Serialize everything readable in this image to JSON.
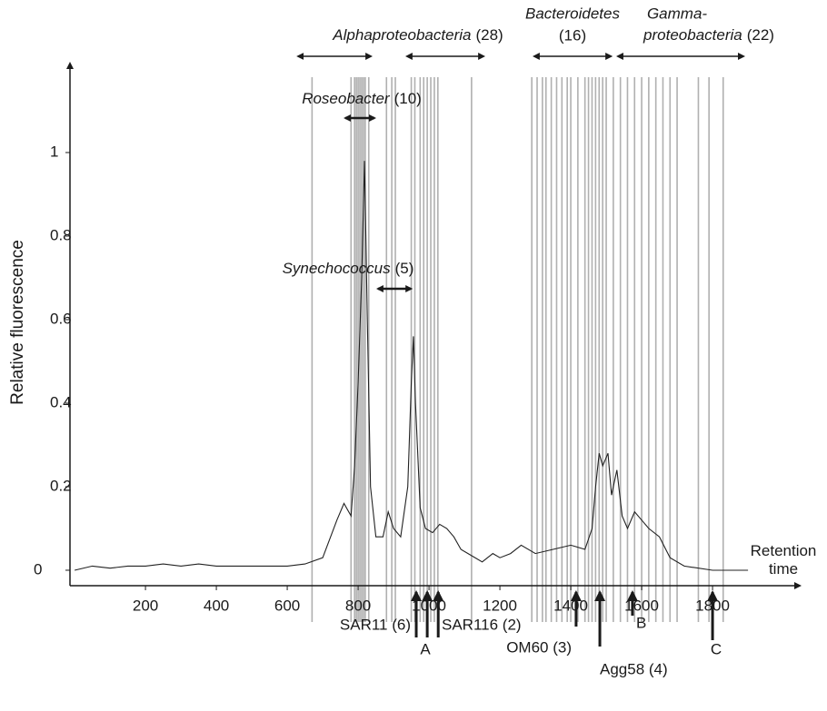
{
  "chart_data": {
    "type": "line",
    "y_label": "Relative fluorescence",
    "x_label": "Retention time",
    "xlim": [
      -13,
      2046
    ],
    "ylim": [
      -0.037,
      1.213
    ],
    "xticks": [
      200,
      400,
      600,
      800,
      1000,
      1200,
      1400,
      1600,
      1800
    ],
    "yticks": [
      0,
      0.2,
      0.4,
      0.6,
      0.8,
      1
    ],
    "x": [
      0,
      50,
      100,
      150,
      200,
      250,
      300,
      350,
      400,
      450,
      500,
      550,
      600,
      650,
      700,
      740,
      760,
      780,
      790,
      800,
      810,
      818,
      826,
      835,
      850,
      870,
      885,
      900,
      920,
      940,
      950,
      956,
      962,
      975,
      990,
      1010,
      1030,
      1050,
      1070,
      1090,
      1110,
      1150,
      1180,
      1200,
      1230,
      1260,
      1300,
      1350,
      1400,
      1440,
      1460,
      1470,
      1480,
      1490,
      1505,
      1515,
      1530,
      1545,
      1560,
      1580,
      1600,
      1620,
      1650,
      1680,
      1720,
      1800,
      1900
    ],
    "series": [
      {
        "name": "Relative fluorescence",
        "color": "#222222",
        "values": [
          0.0,
          0.01,
          0.005,
          0.01,
          0.01,
          0.015,
          0.01,
          0.015,
          0.01,
          0.01,
          0.01,
          0.01,
          0.01,
          0.015,
          0.03,
          0.12,
          0.16,
          0.13,
          0.25,
          0.45,
          0.7,
          0.98,
          0.6,
          0.2,
          0.08,
          0.08,
          0.14,
          0.1,
          0.08,
          0.2,
          0.45,
          0.56,
          0.4,
          0.15,
          0.1,
          0.09,
          0.11,
          0.1,
          0.08,
          0.05,
          0.04,
          0.02,
          0.04,
          0.03,
          0.04,
          0.06,
          0.04,
          0.05,
          0.06,
          0.05,
          0.1,
          0.2,
          0.28,
          0.25,
          0.28,
          0.18,
          0.24,
          0.13,
          0.1,
          0.14,
          0.12,
          0.1,
          0.08,
          0.03,
          0.01,
          0.0,
          0.0
        ]
      }
    ],
    "marker_lines": [
      670,
      780,
      790,
      795,
      800,
      805,
      810,
      815,
      820,
      830,
      880,
      895,
      905,
      950,
      960,
      975,
      985,
      995,
      1005,
      1015,
      1025,
      1120,
      1290,
      1305,
      1320,
      1330,
      1345,
      1360,
      1375,
      1390,
      1400,
      1420,
      1440,
      1450,
      1460,
      1470,
      1480,
      1490,
      1500,
      1520,
      1540,
      1560,
      1580,
      1600,
      1620,
      1640,
      1660,
      1680,
      1700,
      1760,
      1790,
      1830
    ],
    "marker_color": "#b0b0b0",
    "ranges": [
      {
        "name": "Alphaproteobacteria",
        "count": "(28)",
        "spans": [
          [
            631,
            836
          ],
          [
            938,
            1154
          ]
        ]
      },
      {
        "name": "Roseobacter",
        "count": "(10)",
        "spans": [
          [
            764,
            846
          ]
        ]
      },
      {
        "name": "Synechococcus",
        "count": "(5)",
        "spans": [
          [
            856,
            949
          ]
        ]
      },
      {
        "name": "Bacteroidetes",
        "count": "(16)",
        "spans": [
          [
            1297,
            1513
          ]
        ]
      },
      {
        "name": [
          "Gamma-",
          "proteobacteria"
        ],
        "count": "(22)",
        "spans": [
          [
            1533,
            1887
          ]
        ]
      }
    ],
    "arrows": [
      964,
      995,
      1026,
      1415,
      1482,
      1574,
      1800
    ],
    "arrow_labels": [
      "SAR11 (6)",
      "A",
      "SAR116 (2)",
      "OM60 (3)",
      "Agg58 (4)",
      "B",
      "C"
    ]
  }
}
